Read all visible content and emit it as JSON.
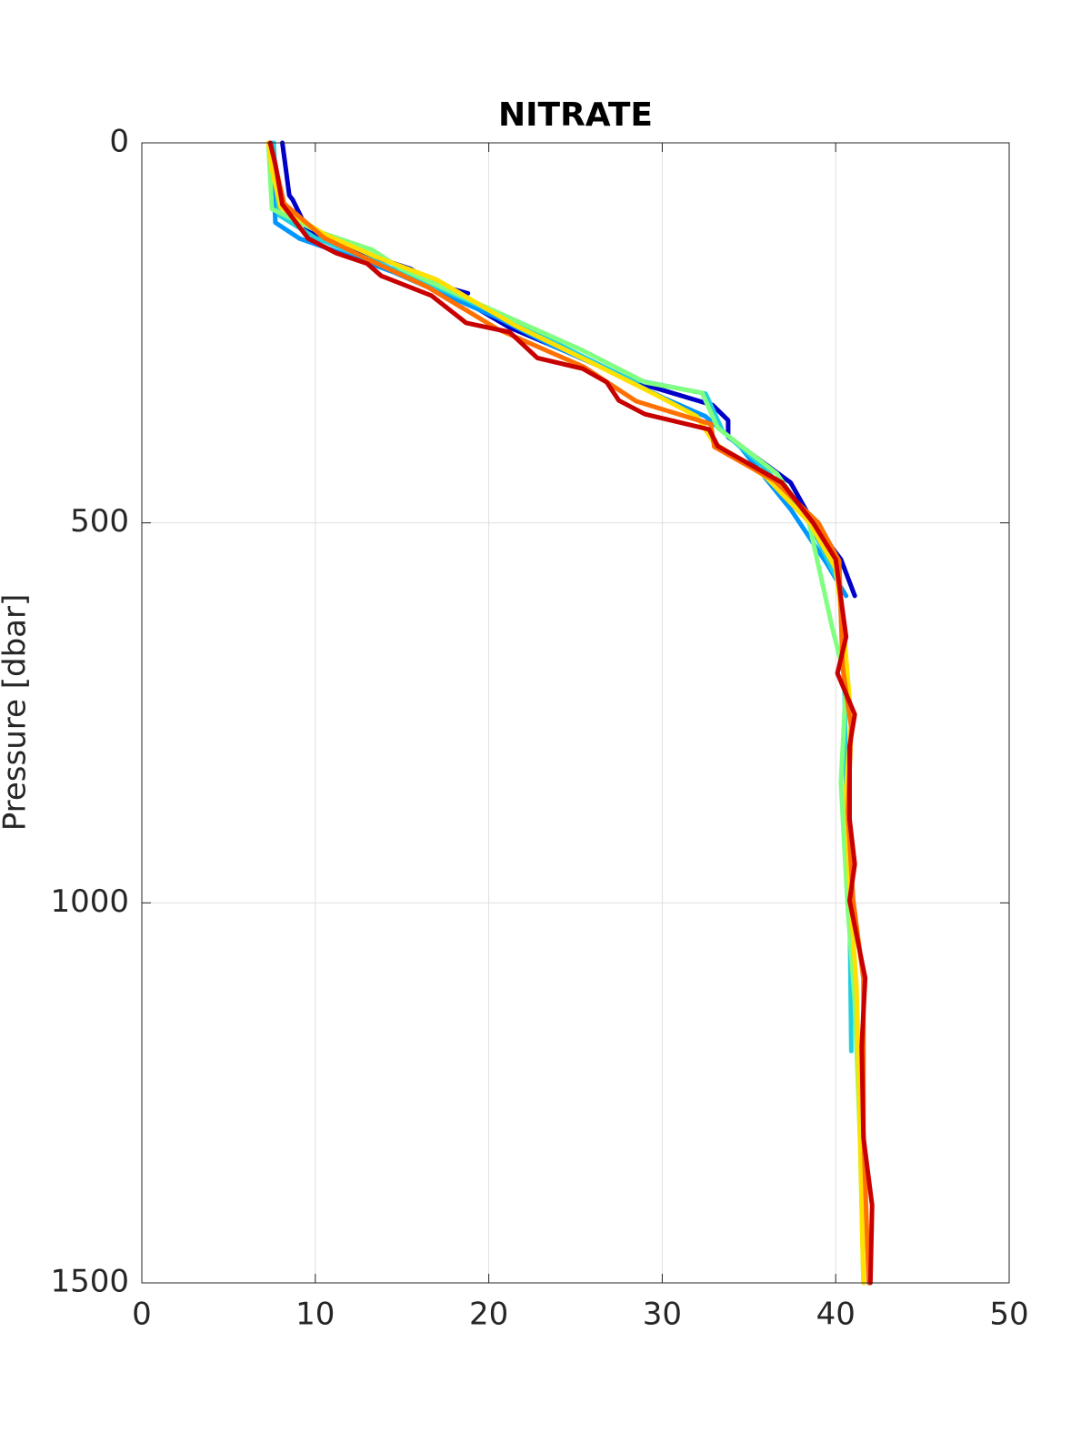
{
  "chart_data": {
    "type": "line",
    "title": "NITRATE",
    "ylabel": "Pressure [dbar]",
    "xlim": [
      0,
      50
    ],
    "xticks": [
      0,
      10,
      20,
      30,
      40,
      50
    ],
    "ylim": [
      0,
      1500
    ],
    "yticks": [
      0,
      500,
      1000,
      1500
    ],
    "y_reversed": true,
    "grid": true,
    "series": [
      {
        "color": "#0000c8",
        "x": [
          8.1,
          8.3,
          8.5,
          8.7,
          9.6,
          13.0,
          15.5,
          16.9,
          18.8,
          18.0,
          21.2,
          24.3,
          28.5,
          32.9,
          33.8,
          33.8,
          37.4,
          38.7,
          40.3,
          41.1
        ],
        "y": [
          0,
          34,
          69,
          75,
          117,
          147,
          166,
          186,
          198,
          200,
          243,
          273,
          315,
          345,
          365,
          387,
          447,
          500,
          548,
          596
        ]
      },
      {
        "color": "#0096ff",
        "x": [
          7.5,
          7.6,
          7.7,
          9.1,
          11.5,
          14.5,
          17.5,
          20.5,
          23.5,
          27.0,
          30.0,
          32.5,
          34.5,
          37.4,
          39.5,
          40.6
        ],
        "y": [
          0,
          50,
          105,
          126,
          145,
          170,
          200,
          230,
          265,
          300,
          335,
          360,
          400,
          482,
          554,
          596
        ]
      },
      {
        "color": "#20d0e0",
        "x": [
          7.6,
          7.7,
          7.9,
          10.0,
          12.8,
          16.0,
          20.0,
          24.0,
          28.0,
          32.5,
          33.5,
          36.0,
          38.5,
          40.2,
          40.5,
          40.6,
          40.8,
          40.9
        ],
        "y": [
          0,
          40,
          95,
          125,
          150,
          180,
          220,
          265,
          310,
          330,
          380,
          430,
          500,
          580,
          700,
          850,
          1000,
          1195
        ]
      },
      {
        "color": "#80ff80",
        "x": [
          7.3,
          7.5,
          10.2,
          13.3,
          14.9,
          20.1,
          25.4,
          29.0,
          32.3,
          33.2,
          36.6,
          38.4,
          39.8,
          40.6,
          40.3,
          40.7,
          41.1,
          41.4,
          41.6
        ],
        "y": [
          4,
          87,
          117,
          141,
          165,
          219,
          273,
          315,
          329,
          375,
          435,
          494,
          638,
          710,
          842,
          1009,
          1129,
          1309,
          1500
        ]
      },
      {
        "color": "#ffe000",
        "x": [
          7.3,
          7.5,
          8.0,
          10.5,
          13.5,
          17.0,
          21.5,
          26.0,
          29.5,
          32.0,
          33.0,
          36.0,
          38.5,
          40.0,
          40.5,
          40.9,
          40.6,
          40.8,
          41.2,
          41.4,
          41.6
        ],
        "y": [
          0,
          35,
          85,
          120,
          150,
          180,
          240,
          290,
          330,
          360,
          395,
          440,
          500,
          560,
          650,
          760,
          850,
          980,
          1110,
          1300,
          1500
        ]
      },
      {
        "color": "#ff7000",
        "x": [
          7.4,
          7.7,
          8.2,
          10.5,
          13.2,
          16.5,
          20.5,
          25.5,
          28.5,
          32.8,
          33.0,
          36.5,
          39.0,
          40.2,
          40.4,
          40.9,
          40.7,
          41.0,
          41.6,
          41.6,
          41.9
        ],
        "y": [
          0,
          30,
          80,
          125,
          155,
          190,
          245,
          295,
          340,
          370,
          400,
          445,
          500,
          550,
          690,
          770,
          880,
          995,
          1100,
          1300,
          1500
        ]
      },
      {
        "color": "#c80000",
        "x": [
          7.4,
          7.7,
          8.1,
          9.6,
          11.2,
          13.0,
          13.8,
          16.7,
          18.7,
          21.2,
          22.8,
          25.4,
          26.8,
          27.5,
          29.0,
          32.7,
          33.2,
          36.9,
          38.7,
          40.0,
          40.6,
          40.1,
          41.1,
          40.8,
          40.8,
          41.1,
          40.8,
          41.7,
          41.5,
          41.6,
          42.1,
          42.0
        ],
        "y": [
          0,
          28,
          81,
          126,
          145,
          159,
          175,
          201,
          237,
          249,
          283,
          297,
          315,
          339,
          357,
          377,
          399,
          447,
          500,
          548,
          650,
          698,
          752,
          794,
          890,
          949,
          997,
          1099,
          1189,
          1309,
          1398,
          1500
        ]
      }
    ]
  }
}
